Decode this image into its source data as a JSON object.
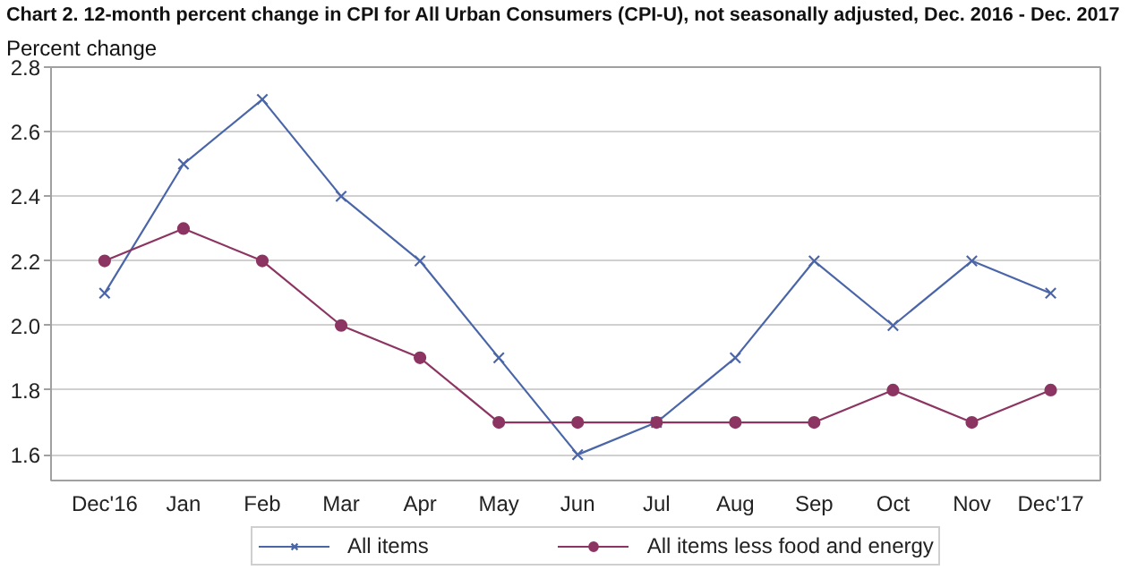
{
  "chart_data": {
    "type": "line",
    "title": "Chart 2. 12-month percent change in CPI for All Urban Consumers (CPI-U), not seasonally adjusted, Dec. 2016 - Dec. 2017",
    "ylabel": "Percent change",
    "categories": [
      "Dec'16",
      "Jan",
      "Feb",
      "Mar",
      "Apr",
      "May",
      "Jun",
      "Jul",
      "Aug",
      "Sep",
      "Oct",
      "Nov",
      "Dec'17"
    ],
    "series": [
      {
        "name": "All items",
        "color": "#4a66a8",
        "marker": "cross",
        "values": [
          2.1,
          2.5,
          2.7,
          2.4,
          2.2,
          1.9,
          1.6,
          1.7,
          1.9,
          2.2,
          2.0,
          2.2,
          2.1
        ]
      },
      {
        "name": "All items less food and energy",
        "color": "#8c3462",
        "marker": "circle",
        "values": [
          2.2,
          2.3,
          2.2,
          2.0,
          1.9,
          1.7,
          1.7,
          1.7,
          1.7,
          1.7,
          1.8,
          1.7,
          1.8
        ]
      }
    ],
    "ylim": [
      1.52,
      2.8
    ],
    "yticks": [
      {
        "value": 1.6,
        "label": "1.6"
      },
      {
        "value": 1.8,
        "label": "1.8"
      },
      {
        "value": 2.0,
        "label": "2.0"
      },
      {
        "value": 2.2,
        "label": "2.2"
      },
      {
        "value": 2.4,
        "label": "2.4"
      },
      {
        "value": 2.6,
        "label": "2.6"
      },
      {
        "value": 2.8,
        "label": "2.8"
      }
    ],
    "grid": "y",
    "legend": "bottom",
    "line_style": "solid"
  }
}
